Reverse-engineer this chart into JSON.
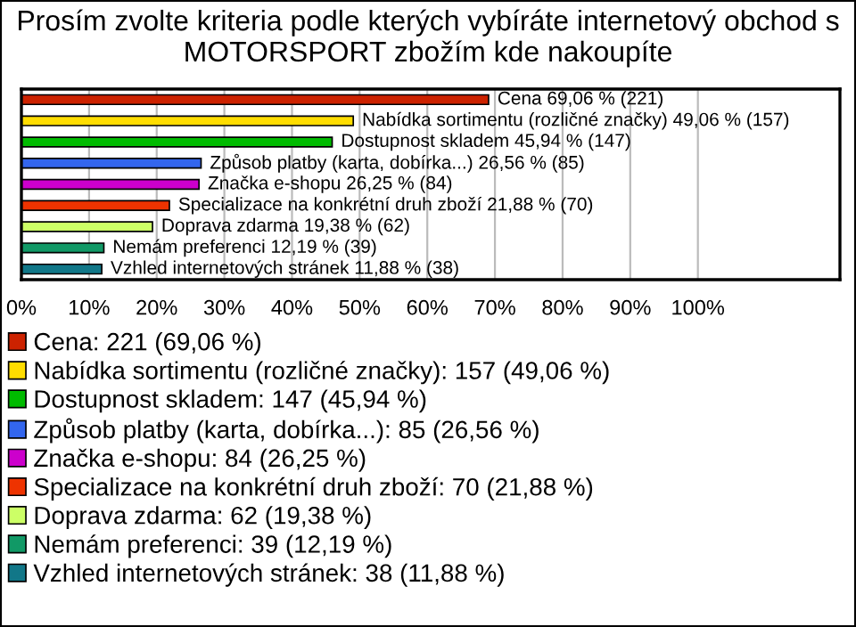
{
  "chart_data": {
    "type": "bar",
    "orientation": "horizontal",
    "title": "Prosím zvolte kriteria podle kterých vybíráte internetový obchod s MOTORSPORT zbožím kde nakoupíte",
    "categories": [
      null,
      null,
      null,
      null,
      null,
      null,
      null,
      null,
      null
    ],
    "series": [
      {
        "name": "Cena: 221 (69,06 %)",
        "color": "#cc2200",
        "values": [
          69.06,
          null,
          null,
          null,
          null,
          null,
          null,
          null,
          null
        ]
      },
      {
        "name": "Nabídka sortimentu (rozličné značky): 157 (49,06 %)",
        "color": "#ffdd00",
        "values": [
          null,
          49.06,
          null,
          null,
          null,
          null,
          null,
          null,
          null
        ]
      },
      {
        "name": "Dostupnost skladem: 147 (45,94 %)",
        "color": "#00bb00",
        "values": [
          null,
          null,
          45.94,
          null,
          null,
          null,
          null,
          null,
          null
        ]
      },
      {
        "name": "Způsob platby (karta, dobírka...): 85 (26,56 %)",
        "color": "#3366ee",
        "values": [
          null,
          null,
          null,
          26.56,
          null,
          null,
          null,
          null,
          null
        ]
      },
      {
        "name": "Značka e-shopu: 84 (26,25 %)",
        "color": "#cc00cc",
        "values": [
          null,
          null,
          null,
          null,
          26.25,
          null,
          null,
          null,
          null
        ]
      },
      {
        "name": "Specializace na konkrétní druh zboží: 70 (21,88 %)",
        "color": "#ee3300",
        "values": [
          null,
          null,
          null,
          null,
          null,
          21.88,
          null,
          null,
          null
        ]
      },
      {
        "name": "Doprava zdarma: 62 (19,38 %)",
        "color": "#ccff66",
        "values": [
          null,
          null,
          null,
          null,
          null,
          null,
          19.38,
          null,
          null
        ]
      },
      {
        "name": "Nemám preferenci: 39 (12,19 %)",
        "color": "#119966",
        "values": [
          null,
          null,
          null,
          null,
          null,
          null,
          null,
          12.19,
          null
        ]
      },
      {
        "name": "Vzhled internetových stránek: 38 (11,88 %)",
        "color": "#117788",
        "values": [
          null,
          null,
          null,
          null,
          null,
          null,
          null,
          null,
          11.88
        ]
      }
    ],
    "value_labels": [
      "Cena 69,06 % (221)",
      "Nabídka sortimentu (rozličné značky) 49,06 % (157)",
      "Dostupnost skladem 45,94 % (147)",
      "Způsob platby (karta, dobírka...) 26,56 % (85)",
      "Značka e-shopu 26,25 % (84)",
      "Specializace na konkrétní druh zboží 21,88 % (70)",
      "Doprava zdarma 19,38 % (62)",
      "Nemám preferenci 12,19 % (39)",
      "Vzhled internetových stránek 11,88 % (38)"
    ],
    "xlim": [
      0,
      121
    ],
    "xticks": [
      {
        "value": 0,
        "label": "0%"
      },
      {
        "value": 10,
        "label": "10%"
      },
      {
        "value": 20,
        "label": "20%"
      },
      {
        "value": 30,
        "label": "30%"
      },
      {
        "value": 40,
        "label": "40%"
      },
      {
        "value": 50,
        "label": "50%"
      },
      {
        "value": 60,
        "label": "60%"
      },
      {
        "value": 70,
        "label": "70%"
      },
      {
        "value": 80,
        "label": "80%"
      },
      {
        "value": 90,
        "label": "90%"
      },
      {
        "value": 100,
        "label": "100%"
      }
    ],
    "tick_labels": "x",
    "grid": "x",
    "legend": "bottom"
  }
}
